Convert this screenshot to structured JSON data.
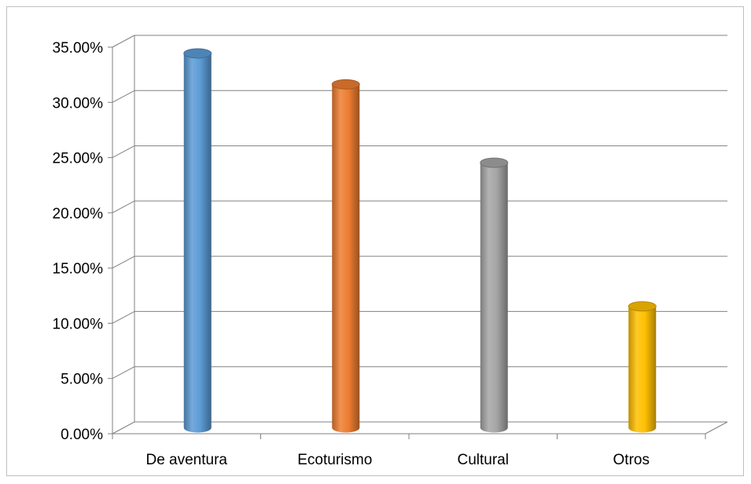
{
  "chart_data": {
    "type": "bar",
    "style": "3d-cylinder",
    "title": "",
    "xlabel": "",
    "ylabel": "",
    "categories": [
      "De aventura",
      "Ecoturismo",
      "Cultural",
      "Otros"
    ],
    "values": [
      0.339,
      0.311,
      0.24,
      0.11
    ],
    "colors": [
      "#5b9bd5",
      "#ed7d31",
      "#a5a5a5",
      "#ffc000"
    ],
    "ylim": [
      0,
      0.35
    ],
    "ytick_step": 0.05,
    "yticks": [
      "0.00%",
      "5.00%",
      "10.00%",
      "15.00%",
      "20.00%",
      "25.00%",
      "30.00%",
      "35.00%"
    ],
    "grid": true,
    "legend": "none"
  }
}
